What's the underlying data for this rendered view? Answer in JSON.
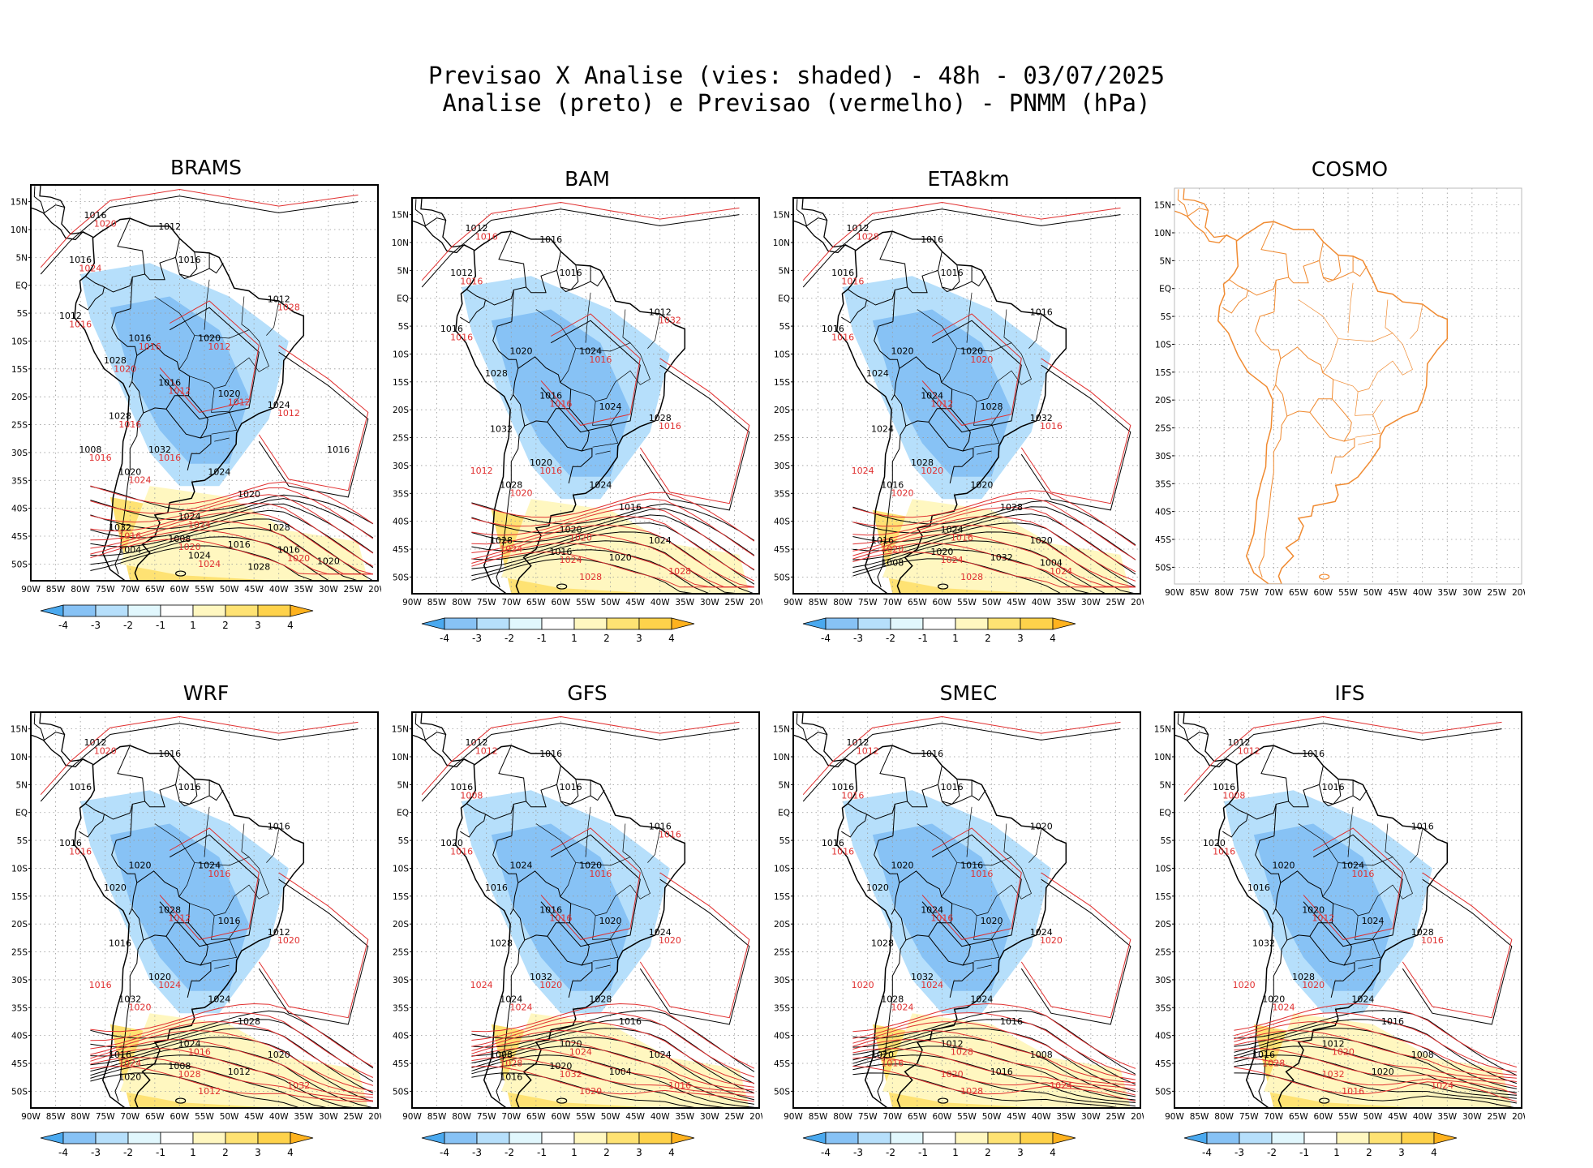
{
  "title": {
    "line1": "Previsao X Analise (vies: shaded) - 48h - 03/07/2025",
    "line2": "Analise (preto) e Previsao (vermelho) - PNMM (hPa)"
  },
  "axes": {
    "lat_labels": [
      "15N",
      "10N",
      "5N",
      "EQ",
      "5S",
      "10S",
      "15S",
      "20S",
      "25S",
      "30S",
      "35S",
      "40S",
      "45S",
      "50S"
    ],
    "lon_labels": [
      "90W",
      "85W",
      "80W",
      "75W",
      "70W",
      "65W",
      "60W",
      "55W",
      "50W",
      "45W",
      "40W",
      "35W",
      "30W",
      "25W",
      "20W"
    ]
  },
  "colorbar": {
    "labels": [
      "-4",
      "-3",
      "-2",
      "-1",
      "1",
      "2",
      "3",
      "4"
    ],
    "colors": [
      "#4aa9ef",
      "#87c2f5",
      "#b6dffb",
      "#e1f7fd",
      "#ffffff",
      "#fff7c0",
      "#fee273",
      "#fed24b",
      "#feb21e"
    ]
  },
  "contour_colors": {
    "analysis": "#000000",
    "forecast": "#e03030",
    "coast_cosmo": "#f08a30"
  },
  "panels": [
    {
      "model": "BRAMS",
      "has_data": true,
      "labels_black": [
        "1016",
        "1012",
        "1016",
        "1016",
        "1012",
        "1012",
        "1016",
        "1020",
        "1028",
        "1016",
        "1020",
        "1024",
        "1028",
        "1032",
        "1024",
        "1020",
        "1020",
        "1024",
        "1028",
        "1032",
        "1016",
        "1008",
        "1004",
        "1016",
        "1020",
        "1024",
        "1028",
        "1008",
        "1016"
      ],
      "labels_red": [
        "1016",
        "1012",
        "1012",
        "1012",
        "1016",
        "1024",
        "1024",
        "1016",
        "1020",
        "1020",
        "1024",
        "1016",
        "1020",
        "1024",
        "1028",
        "1016",
        "1020",
        "1012",
        "1016"
      ]
    },
    {
      "model": "BAM",
      "has_data": true,
      "labels_black": [
        "1012",
        "1016",
        "1012",
        "1016",
        "1012",
        "1016",
        "1020",
        "1024",
        "1028",
        "1016",
        "1024",
        "1028",
        "1032",
        "1020",
        "1024",
        "1028",
        "1016",
        "1020",
        "1024",
        "1028",
        "1020",
        "1016"
      ],
      "labels_red": [
        "1016",
        "1016",
        "1016",
        "1016",
        "1016",
        "1020",
        "1020",
        "1024",
        "1024",
        "1028",
        "1028",
        "1012",
        "1016",
        "1016",
        "1032"
      ]
    },
    {
      "model": "ETA8km",
      "has_data": true,
      "labels_black": [
        "1012",
        "1016",
        "1016",
        "1016",
        "1016",
        "1016",
        "1020",
        "1020",
        "1024",
        "1024",
        "1028",
        "1032",
        "1024",
        "1028",
        "1020",
        "1016",
        "1028",
        "1024",
        "1020",
        "1016",
        "1032",
        "1020",
        "1008",
        "1004"
      ],
      "labels_red": [
        "1016",
        "1020",
        "1012",
        "1016",
        "1020",
        "1020",
        "1016",
        "1020",
        "1024",
        "1024",
        "1028",
        "1024",
        "1028",
        "1016"
      ]
    },
    {
      "model": "COSMO",
      "has_data": false,
      "labels_black": [],
      "labels_red": []
    },
    {
      "model": "WRF",
      "has_data": true,
      "labels_black": [
        "1012",
        "1016",
        "1016",
        "1016",
        "1016",
        "1016",
        "1020",
        "1024",
        "1020",
        "1028",
        "1016",
        "1012",
        "1016",
        "1020",
        "1024",
        "1032",
        "1028",
        "1024",
        "1020",
        "1016",
        "1012",
        "1008",
        "1020"
      ],
      "labels_red": [
        "1016",
        "1016",
        "1012",
        "1020",
        "1024",
        "1020",
        "1016",
        "1024",
        "1028",
        "1032",
        "1012",
        "1016",
        "1020"
      ]
    },
    {
      "model": "GFS",
      "has_data": true,
      "labels_black": [
        "1012",
        "1016",
        "1016",
        "1016",
        "1016",
        "1020",
        "1024",
        "1020",
        "1016",
        "1016",
        "1020",
        "1024",
        "1028",
        "1032",
        "1028",
        "1024",
        "1016",
        "1020",
        "1024",
        "1008",
        "1004",
        "1020",
        "1016"
      ],
      "labels_red": [
        "1016",
        "1016",
        "1016",
        "1020",
        "1020",
        "1024",
        "1024",
        "1028",
        "1032",
        "1016",
        "1020",
        "1024",
        "1012",
        "1008",
        "1016"
      ]
    },
    {
      "model": "SMEC",
      "has_data": true,
      "labels_black": [
        "1012",
        "1016",
        "1016",
        "1016",
        "1020",
        "1016",
        "1020",
        "1016",
        "1020",
        "1024",
        "1020",
        "1024",
        "1028",
        "1032",
        "1024",
        "1028",
        "1016",
        "1012",
        "1008",
        "1020",
        "1016"
      ],
      "labels_red": [
        "1016",
        "1016",
        "1016",
        "1020",
        "1024",
        "1024",
        "1028",
        "1016",
        "1020",
        "1024",
        "1028",
        "1020",
        "1012",
        "1016"
      ]
    },
    {
      "model": "IFS",
      "has_data": true,
      "labels_black": [
        "1012",
        "1016",
        "1016",
        "1016",
        "1016",
        "1020",
        "1020",
        "1024",
        "1016",
        "1020",
        "1024",
        "1028",
        "1032",
        "1028",
        "1024",
        "1020",
        "1016",
        "1012",
        "1008",
        "1016",
        "1020"
      ],
      "labels_red": [
        "1016",
        "1016",
        "1012",
        "1016",
        "1020",
        "1024",
        "1020",
        "1028",
        "1032",
        "1024",
        "1016",
        "1020",
        "1012",
        "1008"
      ]
    }
  ]
}
